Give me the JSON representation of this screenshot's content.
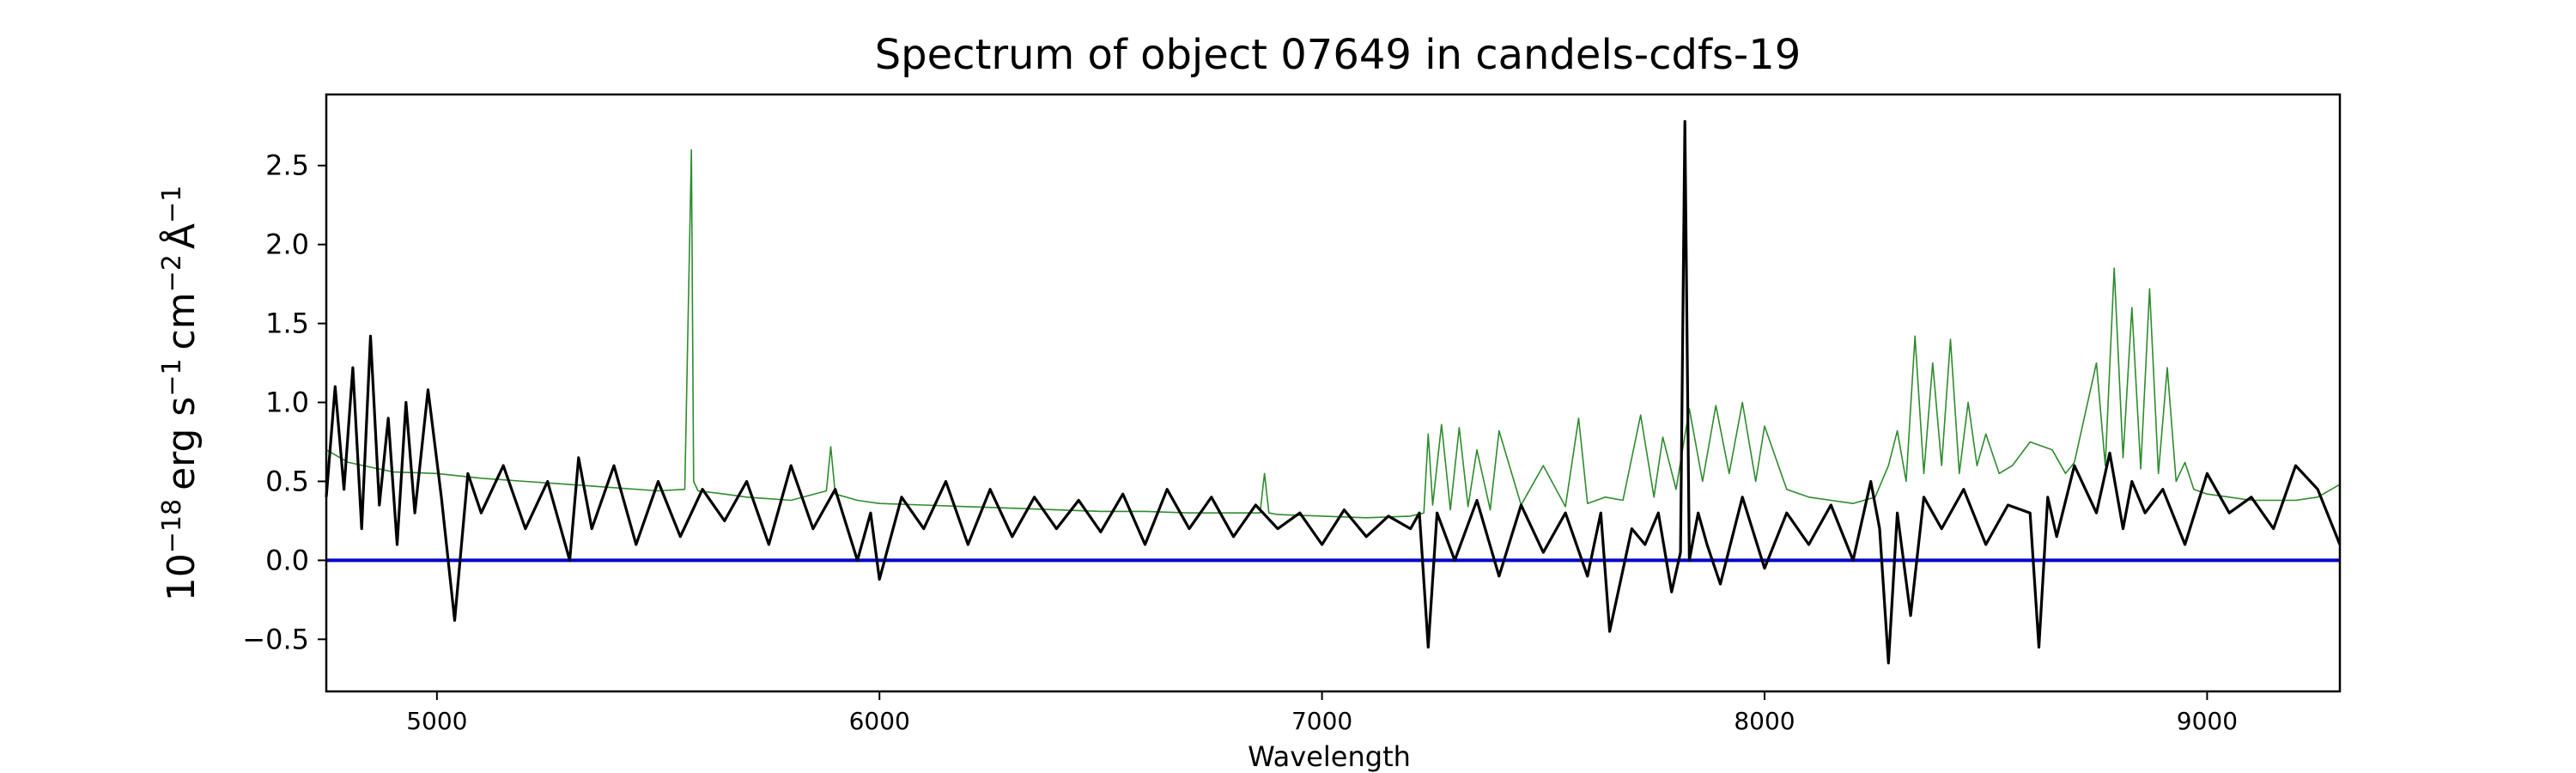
{
  "chart_data": {
    "type": "line",
    "title": "Spectrum of object 07649 in candels-cdfs-19",
    "xlabel": "Wavelength",
    "ylabel": {
      "base": "10",
      "base_exp": "−18",
      "erg": "erg s",
      "s_exp": "−1",
      "cm": "cm",
      "cm_exp": "−2",
      "angstrom": "Å",
      "a_exp": "−1"
    },
    "xlim": [
      4750,
      9300
    ],
    "ylim": [
      -0.83,
      2.95
    ],
    "x_ticks": [
      5000,
      6000,
      7000,
      8000,
      9000
    ],
    "x_tick_labels": [
      "5000",
      "6000",
      "7000",
      "8000",
      "9000"
    ],
    "y_ticks": [
      -0.5,
      0.0,
      0.5,
      1.0,
      1.5,
      2.0,
      2.5
    ],
    "y_tick_labels": [
      "−0.5",
      "0.0",
      "0.5",
      "1.0",
      "1.5",
      "2.0",
      "2.5"
    ],
    "grid": false,
    "legend": "none",
    "series": [
      {
        "role": "zero-line",
        "color": "#0000cc",
        "x": [
          4750,
          9300
        ],
        "y": [
          0.0,
          0.0
        ]
      },
      {
        "role": "error",
        "color": "#2e8b2e",
        "x": [
          4750,
          4800,
          4900,
          5000,
          5100,
          5200,
          5300,
          5400,
          5500,
          5560,
          5575,
          5580,
          5590,
          5650,
          5700,
          5800,
          5880,
          5890,
          5900,
          5950,
          6000,
          6100,
          6200,
          6300,
          6400,
          6500,
          6600,
          6700,
          6800,
          6860,
          6870,
          6880,
          6900,
          7000,
          7100,
          7200,
          7230,
          7240,
          7250,
          7270,
          7290,
          7310,
          7330,
          7350,
          7380,
          7400,
          7450,
          7500,
          7550,
          7580,
          7600,
          7640,
          7680,
          7720,
          7750,
          7770,
          7800,
          7830,
          7860,
          7890,
          7920,
          7950,
          7980,
          8000,
          8050,
          8100,
          8150,
          8200,
          8250,
          8280,
          8300,
          8320,
          8340,
          8360,
          8380,
          8400,
          8420,
          8440,
          8460,
          8480,
          8500,
          8530,
          8560,
          8600,
          8650,
          8680,
          8700,
          8750,
          8770,
          8790,
          8810,
          8830,
          8850,
          8870,
          8890,
          8910,
          8930,
          8950,
          8970,
          9000,
          9050,
          9100,
          9150,
          9200,
          9250,
          9300
        ],
        "y": [
          0.7,
          0.62,
          0.56,
          0.55,
          0.52,
          0.5,
          0.48,
          0.46,
          0.44,
          0.45,
          2.6,
          0.5,
          0.44,
          0.42,
          0.4,
          0.38,
          0.44,
          0.72,
          0.42,
          0.38,
          0.36,
          0.35,
          0.34,
          0.33,
          0.32,
          0.31,
          0.31,
          0.3,
          0.3,
          0.3,
          0.55,
          0.3,
          0.29,
          0.28,
          0.27,
          0.28,
          0.3,
          0.8,
          0.35,
          0.86,
          0.32,
          0.84,
          0.34,
          0.7,
          0.32,
          0.82,
          0.35,
          0.6,
          0.34,
          0.9,
          0.36,
          0.4,
          0.38,
          0.92,
          0.4,
          0.78,
          0.45,
          0.96,
          0.5,
          0.98,
          0.55,
          1.0,
          0.5,
          0.85,
          0.45,
          0.4,
          0.38,
          0.36,
          0.4,
          0.6,
          0.82,
          0.5,
          1.42,
          0.55,
          1.25,
          0.6,
          1.4,
          0.55,
          1.0,
          0.6,
          0.8,
          0.55,
          0.6,
          0.75,
          0.7,
          0.55,
          0.62,
          1.25,
          0.6,
          1.85,
          0.65,
          1.6,
          0.58,
          1.72,
          0.55,
          1.22,
          0.5,
          0.62,
          0.45,
          0.42,
          0.4,
          0.38,
          0.38,
          0.38,
          0.4,
          0.48
        ]
      },
      {
        "role": "flux",
        "color": "#000000",
        "x": [
          4750,
          4770,
          4790,
          4810,
          4830,
          4850,
          4870,
          4890,
          4910,
          4930,
          4950,
          4980,
          5010,
          5040,
          5070,
          5100,
          5150,
          5200,
          5250,
          5300,
          5320,
          5350,
          5400,
          5450,
          5500,
          5550,
          5600,
          5650,
          5700,
          5750,
          5800,
          5850,
          5900,
          5950,
          5980,
          6000,
          6050,
          6100,
          6150,
          6200,
          6250,
          6300,
          6350,
          6400,
          6450,
          6500,
          6550,
          6600,
          6650,
          6700,
          6750,
          6800,
          6850,
          6900,
          6950,
          7000,
          7050,
          7100,
          7150,
          7200,
          7220,
          7240,
          7260,
          7300,
          7350,
          7400,
          7450,
          7500,
          7550,
          7600,
          7630,
          7650,
          7700,
          7730,
          7760,
          7790,
          7810,
          7820,
          7830,
          7850,
          7870,
          7900,
          7950,
          8000,
          8050,
          8100,
          8150,
          8200,
          8240,
          8260,
          8280,
          8300,
          8330,
          8360,
          8400,
          8450,
          8500,
          8550,
          8600,
          8620,
          8640,
          8660,
          8700,
          8750,
          8780,
          8810,
          8830,
          8860,
          8900,
          8950,
          9000,
          9050,
          9100,
          9150,
          9200,
          9250,
          9300
        ],
        "y": [
          0.4,
          1.1,
          0.45,
          1.22,
          0.2,
          1.42,
          0.35,
          0.9,
          0.1,
          1.0,
          0.3,
          1.08,
          0.4,
          -0.38,
          0.55,
          0.3,
          0.6,
          0.2,
          0.5,
          0.0,
          0.65,
          0.2,
          0.6,
          0.1,
          0.5,
          0.15,
          0.45,
          0.25,
          0.5,
          0.1,
          0.6,
          0.2,
          0.45,
          0.0,
          0.3,
          -0.12,
          0.4,
          0.2,
          0.5,
          0.1,
          0.45,
          0.15,
          0.4,
          0.2,
          0.38,
          0.18,
          0.42,
          0.1,
          0.45,
          0.2,
          0.4,
          0.15,
          0.35,
          0.2,
          0.3,
          0.1,
          0.32,
          0.15,
          0.28,
          0.2,
          0.3,
          -0.55,
          0.3,
          0.0,
          0.38,
          -0.1,
          0.35,
          0.05,
          0.3,
          -0.1,
          0.3,
          -0.45,
          0.2,
          0.1,
          0.3,
          -0.2,
          0.05,
          2.78,
          0.0,
          0.3,
          0.1,
          -0.15,
          0.4,
          -0.05,
          0.3,
          0.1,
          0.35,
          0.0,
          0.5,
          0.2,
          -0.65,
          0.3,
          -0.35,
          0.4,
          0.2,
          0.45,
          0.1,
          0.35,
          0.3,
          -0.55,
          0.4,
          0.15,
          0.6,
          0.3,
          0.68,
          0.2,
          0.5,
          0.3,
          0.45,
          0.1,
          0.55,
          0.3,
          0.4,
          0.2,
          0.6,
          0.45,
          0.1
        ]
      }
    ]
  }
}
